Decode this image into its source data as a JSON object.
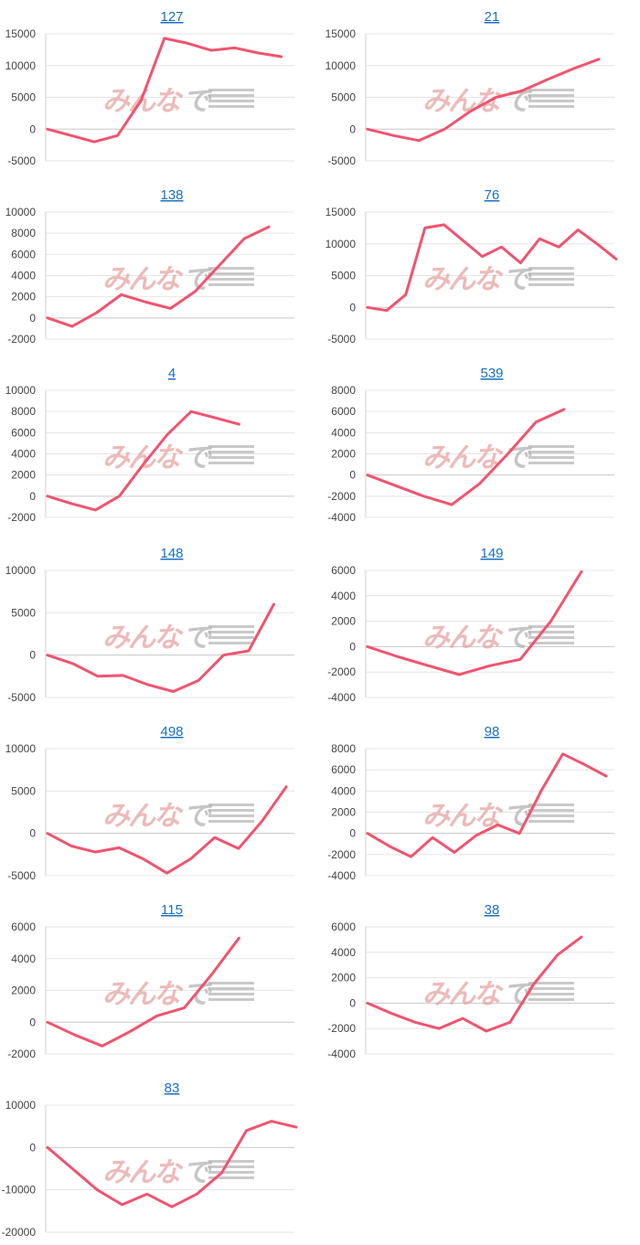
{
  "colors": {
    "series": "#f0546f",
    "title_link": "#1a6fc4",
    "grid": "#e4e4e4",
    "watermark_red": "#e7a4a4",
    "watermark_gray": "#b3b3b3"
  },
  "watermark": {
    "left_text": "みんな",
    "right_text": "で"
  },
  "chart_data": [
    {
      "type": "line",
      "title": "127",
      "ylim": [
        -5000,
        15000
      ],
      "yticks": [
        15000,
        10000,
        5000,
        0,
        -5000
      ],
      "values": [
        0,
        -1000,
        -2000,
        -1000,
        4500,
        14300,
        13500,
        12400,
        12800,
        12000,
        11400
      ]
    },
    {
      "type": "line",
      "title": "21",
      "ylim": [
        -5000,
        15000
      ],
      "yticks": [
        15000,
        10000,
        5000,
        0,
        -5000
      ],
      "values": [
        0,
        -1000,
        -1800,
        0,
        2800,
        5000,
        6000,
        7800,
        9500,
        11000
      ]
    },
    {
      "type": "line",
      "title": "138",
      "ylim": [
        -2000,
        10000
      ],
      "yticks": [
        10000,
        8000,
        6000,
        4000,
        2000,
        0,
        -2000
      ],
      "values": [
        0,
        -800,
        500,
        2200,
        1500,
        900,
        2500,
        5000,
        7500,
        8600
      ]
    },
    {
      "type": "line",
      "title": "76",
      "ylim": [
        -5000,
        15000
      ],
      "yticks": [
        15000,
        10000,
        5000,
        0,
        -5000
      ],
      "values": [
        0,
        -500,
        2000,
        12500,
        13000,
        10500,
        8000,
        9500,
        7000,
        10800,
        9500,
        12200,
        10000,
        7600
      ]
    },
    {
      "type": "line",
      "title": "4",
      "ylim": [
        -2000,
        10000
      ],
      "yticks": [
        10000,
        8000,
        6000,
        4000,
        2000,
        0,
        -2000
      ],
      "values": [
        0,
        -700,
        -1300,
        0,
        3000,
        5800,
        8000,
        7400,
        6800
      ]
    },
    {
      "type": "line",
      "title": "539",
      "ylim": [
        -4000,
        8000
      ],
      "yticks": [
        8000,
        6000,
        4000,
        2000,
        0,
        -2000,
        -4000
      ],
      "values": [
        0,
        -1000,
        -2000,
        -2800,
        -800,
        2000,
        5000,
        6200
      ]
    },
    {
      "type": "line",
      "title": "148",
      "ylim": [
        -5000,
        10000
      ],
      "yticks": [
        10000,
        5000,
        0,
        -5000
      ],
      "values": [
        0,
        -1000,
        -2500,
        -2400,
        -3500,
        -4300,
        -3000,
        0,
        500,
        6000
      ]
    },
    {
      "type": "line",
      "title": "149",
      "ylim": [
        -4000,
        6000
      ],
      "yticks": [
        6000,
        4000,
        2000,
        0,
        -2000,
        -4000
      ],
      "values": [
        0,
        -800,
        -1500,
        -2200,
        -1500,
        -1000,
        2000,
        5900
      ]
    },
    {
      "type": "line",
      "title": "498",
      "ylim": [
        -5000,
        10000
      ],
      "yticks": [
        10000,
        5000,
        0,
        -5000
      ],
      "values": [
        0,
        -1500,
        -2200,
        -1700,
        -3000,
        -4700,
        -3000,
        -500,
        -1800,
        1500,
        5500
      ]
    },
    {
      "type": "line",
      "title": "98",
      "ylim": [
        -4000,
        8000
      ],
      "yticks": [
        8000,
        6000,
        4000,
        2000,
        0,
        -2000,
        -4000
      ],
      "values": [
        0,
        -1200,
        -2200,
        -400,
        -1800,
        -200,
        800,
        0,
        4000,
        7500,
        6500,
        5400
      ]
    },
    {
      "type": "line",
      "title": "115",
      "ylim": [
        -2000,
        6000
      ],
      "yticks": [
        6000,
        4000,
        2000,
        0,
        -2000
      ],
      "values": [
        0,
        -800,
        -1500,
        -600,
        400,
        900,
        3000,
        5300
      ]
    },
    {
      "type": "line",
      "title": "38",
      "ylim": [
        -4000,
        6000
      ],
      "yticks": [
        6000,
        4000,
        2000,
        0,
        -2000,
        -4000
      ],
      "values": [
        0,
        -800,
        -1500,
        -2000,
        -1200,
        -2200,
        -1500,
        1500,
        3800,
        5200
      ]
    },
    {
      "type": "line",
      "title": "83",
      "ylim": [
        -20000,
        10000
      ],
      "yticks": [
        10000,
        0,
        -10000,
        -20000
      ],
      "values": [
        0,
        -5000,
        -10000,
        -13500,
        -11000,
        -14000,
        -11000,
        -6000,
        4000,
        6200,
        4800
      ]
    }
  ]
}
